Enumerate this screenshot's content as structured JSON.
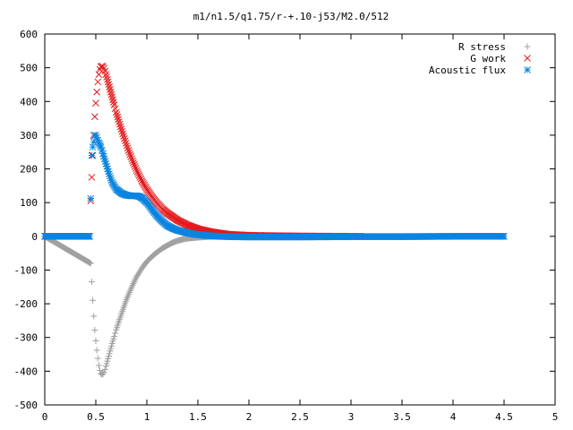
{
  "chart_data": {
    "type": "scatter",
    "title": "m1/n1.5/q1.75/r-+.10-j53/M2.0/512",
    "xlabel": "",
    "ylabel": "",
    "xlim": [
      0,
      5
    ],
    "ylim": [
      -500,
      600
    ],
    "x_ticks": [
      "0",
      "0.5",
      "1",
      "1.5",
      "2",
      "2.5",
      "3",
      "3.5",
      "4",
      "4.5",
      "5"
    ],
    "y_ticks": [
      "600",
      "500",
      "400",
      "300",
      "200",
      "100",
      "0",
      "-100",
      "-200",
      "-300",
      "-400",
      "-500"
    ],
    "grid": false,
    "legend_position": "top-right",
    "series": [
      {
        "name": "R stress",
        "marker": "plus",
        "color": "#a0a0a0",
        "x": [
          0.0,
          0.45,
          0.46,
          0.47,
          0.48,
          0.49,
          0.5,
          0.51,
          0.52,
          0.53,
          0.54,
          0.55,
          0.56,
          0.57,
          0.58,
          0.59,
          0.6,
          0.62,
          0.64,
          0.66,
          0.68,
          0.7,
          0.72,
          0.74,
          0.76,
          0.78,
          0.8,
          0.83,
          0.86,
          0.9,
          0.95,
          1.0,
          1.05,
          1.1,
          1.15,
          1.2,
          1.25,
          1.3,
          1.35,
          1.4,
          1.5,
          1.6,
          1.7,
          4.5
        ],
        "y": [
          0,
          -80,
          -135,
          -190,
          -237,
          -278,
          -310,
          -338,
          -362,
          -383,
          -398,
          -407,
          -410,
          -408,
          -403,
          -395,
          -385,
          -363,
          -340,
          -318,
          -297,
          -277,
          -258,
          -240,
          -222,
          -205,
          -188,
          -166,
          -145,
          -120,
          -95,
          -75,
          -60,
          -47,
          -36,
          -27,
          -19,
          -13,
          -9,
          -6,
          -3,
          -1,
          0,
          0
        ]
      },
      {
        "name": "G work",
        "marker": "cross",
        "color": "#e41a1c",
        "x": [
          0.0,
          0.44,
          0.45,
          0.46,
          0.47,
          0.48,
          0.49,
          0.5,
          0.51,
          0.52,
          0.53,
          0.54,
          0.55,
          0.56,
          0.57,
          0.58,
          0.59,
          0.6,
          0.62,
          0.64,
          0.66,
          0.68,
          0.7,
          0.72,
          0.75,
          0.78,
          0.82,
          0.86,
          0.9,
          0.95,
          1.0,
          1.05,
          1.1,
          1.15,
          1.2,
          1.3,
          1.4,
          1.5,
          1.6,
          1.7,
          1.8,
          2.0,
          2.2,
          2.5,
          3.0,
          3.1
        ],
        "y": [
          0,
          0,
          105,
          175,
          240,
          300,
          355,
          395,
          428,
          458,
          480,
          495,
          503,
          505,
          503,
          498,
          490,
          480,
          458,
          436,
          413,
          390,
          368,
          347,
          318,
          290,
          255,
          224,
          196,
          165,
          139,
          117,
          98,
          82,
          69,
          48,
          33,
          22,
          15,
          10,
          6,
          3,
          2,
          1,
          0,
          0
        ]
      },
      {
        "name": "Acoustic flux",
        "marker": "star",
        "color": "#0b84e0",
        "x": [
          0.0,
          0.44,
          0.45,
          0.46,
          0.47,
          0.48,
          0.49,
          0.5,
          0.51,
          0.52,
          0.53,
          0.55,
          0.57,
          0.6,
          0.63,
          0.66,
          0.7,
          0.75,
          0.8,
          0.85,
          0.9,
          0.93,
          0.96,
          1.0,
          1.05,
          1.1,
          1.15,
          1.2,
          1.25,
          1.3,
          1.4,
          1.5,
          1.6,
          1.7,
          1.8,
          2.0,
          2.5,
          3.0,
          3.5,
          4.0,
          4.5
        ],
        "y": [
          0,
          0,
          112,
          240,
          265,
          280,
          298,
          300,
          294,
          285,
          278,
          265,
          245,
          215,
          185,
          160,
          140,
          128,
          122,
          120,
          120,
          118,
          112,
          100,
          80,
          60,
          45,
          32,
          24,
          18,
          10,
          5,
          2,
          0,
          -1,
          -2,
          -2,
          -1,
          -1,
          0,
          0
        ]
      }
    ]
  }
}
